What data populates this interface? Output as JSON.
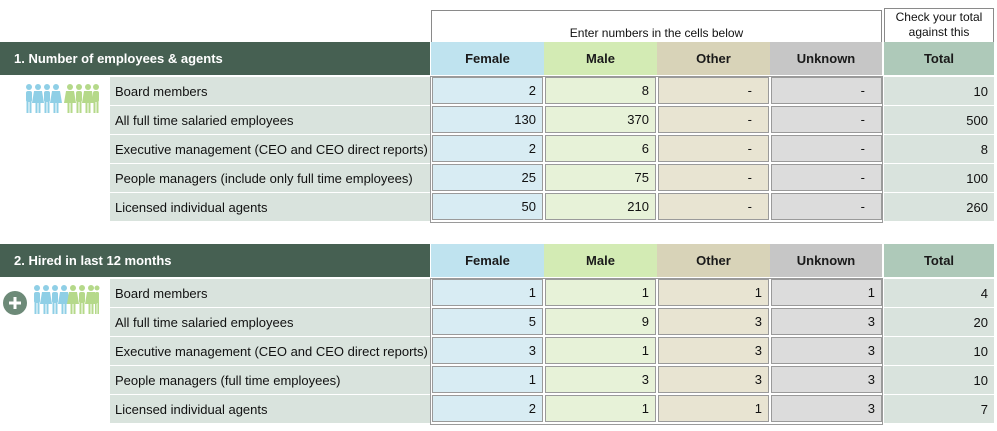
{
  "header": {
    "enter_note": "Enter numbers in the cells below",
    "check_note_line1": "Check your total",
    "check_note_line2": "against this"
  },
  "columns": {
    "female": "Female",
    "male": "Male",
    "other": "Other",
    "unknown": "Unknown",
    "total": "Total"
  },
  "section1": {
    "title": "1. Number of employees & agents",
    "icon": "people-group-icon",
    "rows": [
      {
        "label": "Board members",
        "female": "2",
        "male": "8",
        "other": "-",
        "unknown": "-",
        "total": "10"
      },
      {
        "label": "All full time salaried employees",
        "female": "130",
        "male": "370",
        "other": "-",
        "unknown": "-",
        "total": "500"
      },
      {
        "label": "Executive management (CEO and CEO direct reports)",
        "female": "2",
        "male": "6",
        "other": "-",
        "unknown": "-",
        "total": "8"
      },
      {
        "label": "People managers (include only full time employees)",
        "female": "25",
        "male": "75",
        "other": "-",
        "unknown": "-",
        "total": "100"
      },
      {
        "label": "Licensed individual agents",
        "female": "50",
        "male": "210",
        "other": "-",
        "unknown": "-",
        "total": "260"
      }
    ]
  },
  "section2": {
    "title": "2. Hired in last 12 months",
    "icon": "add-people-icon",
    "rows": [
      {
        "label": "Board members",
        "female": "1",
        "male": "1",
        "other": "1",
        "unknown": "1",
        "total": "4"
      },
      {
        "label": "All full time salaried employees",
        "female": "5",
        "male": "9",
        "other": "3",
        "unknown": "3",
        "total": "20"
      },
      {
        "label": "Executive management (CEO and CEO direct reports)",
        "female": "3",
        "male": "1",
        "other": "3",
        "unknown": "3",
        "total": "10"
      },
      {
        "label": "People managers (full time employees)",
        "female": "1",
        "male": "3",
        "other": "3",
        "unknown": "3",
        "total": "10"
      },
      {
        "label": "Licensed individual agents",
        "female": "2",
        "male": "1",
        "other": "1",
        "unknown": "3",
        "total": "7"
      }
    ]
  },
  "colors": {
    "section_bar": "#466052",
    "female_head": "#bfe3ef",
    "male_head": "#d3ebb4",
    "other_head": "#d8d3b8",
    "unknown_head": "#c6c6c6",
    "total_head": "#aec9b9"
  }
}
